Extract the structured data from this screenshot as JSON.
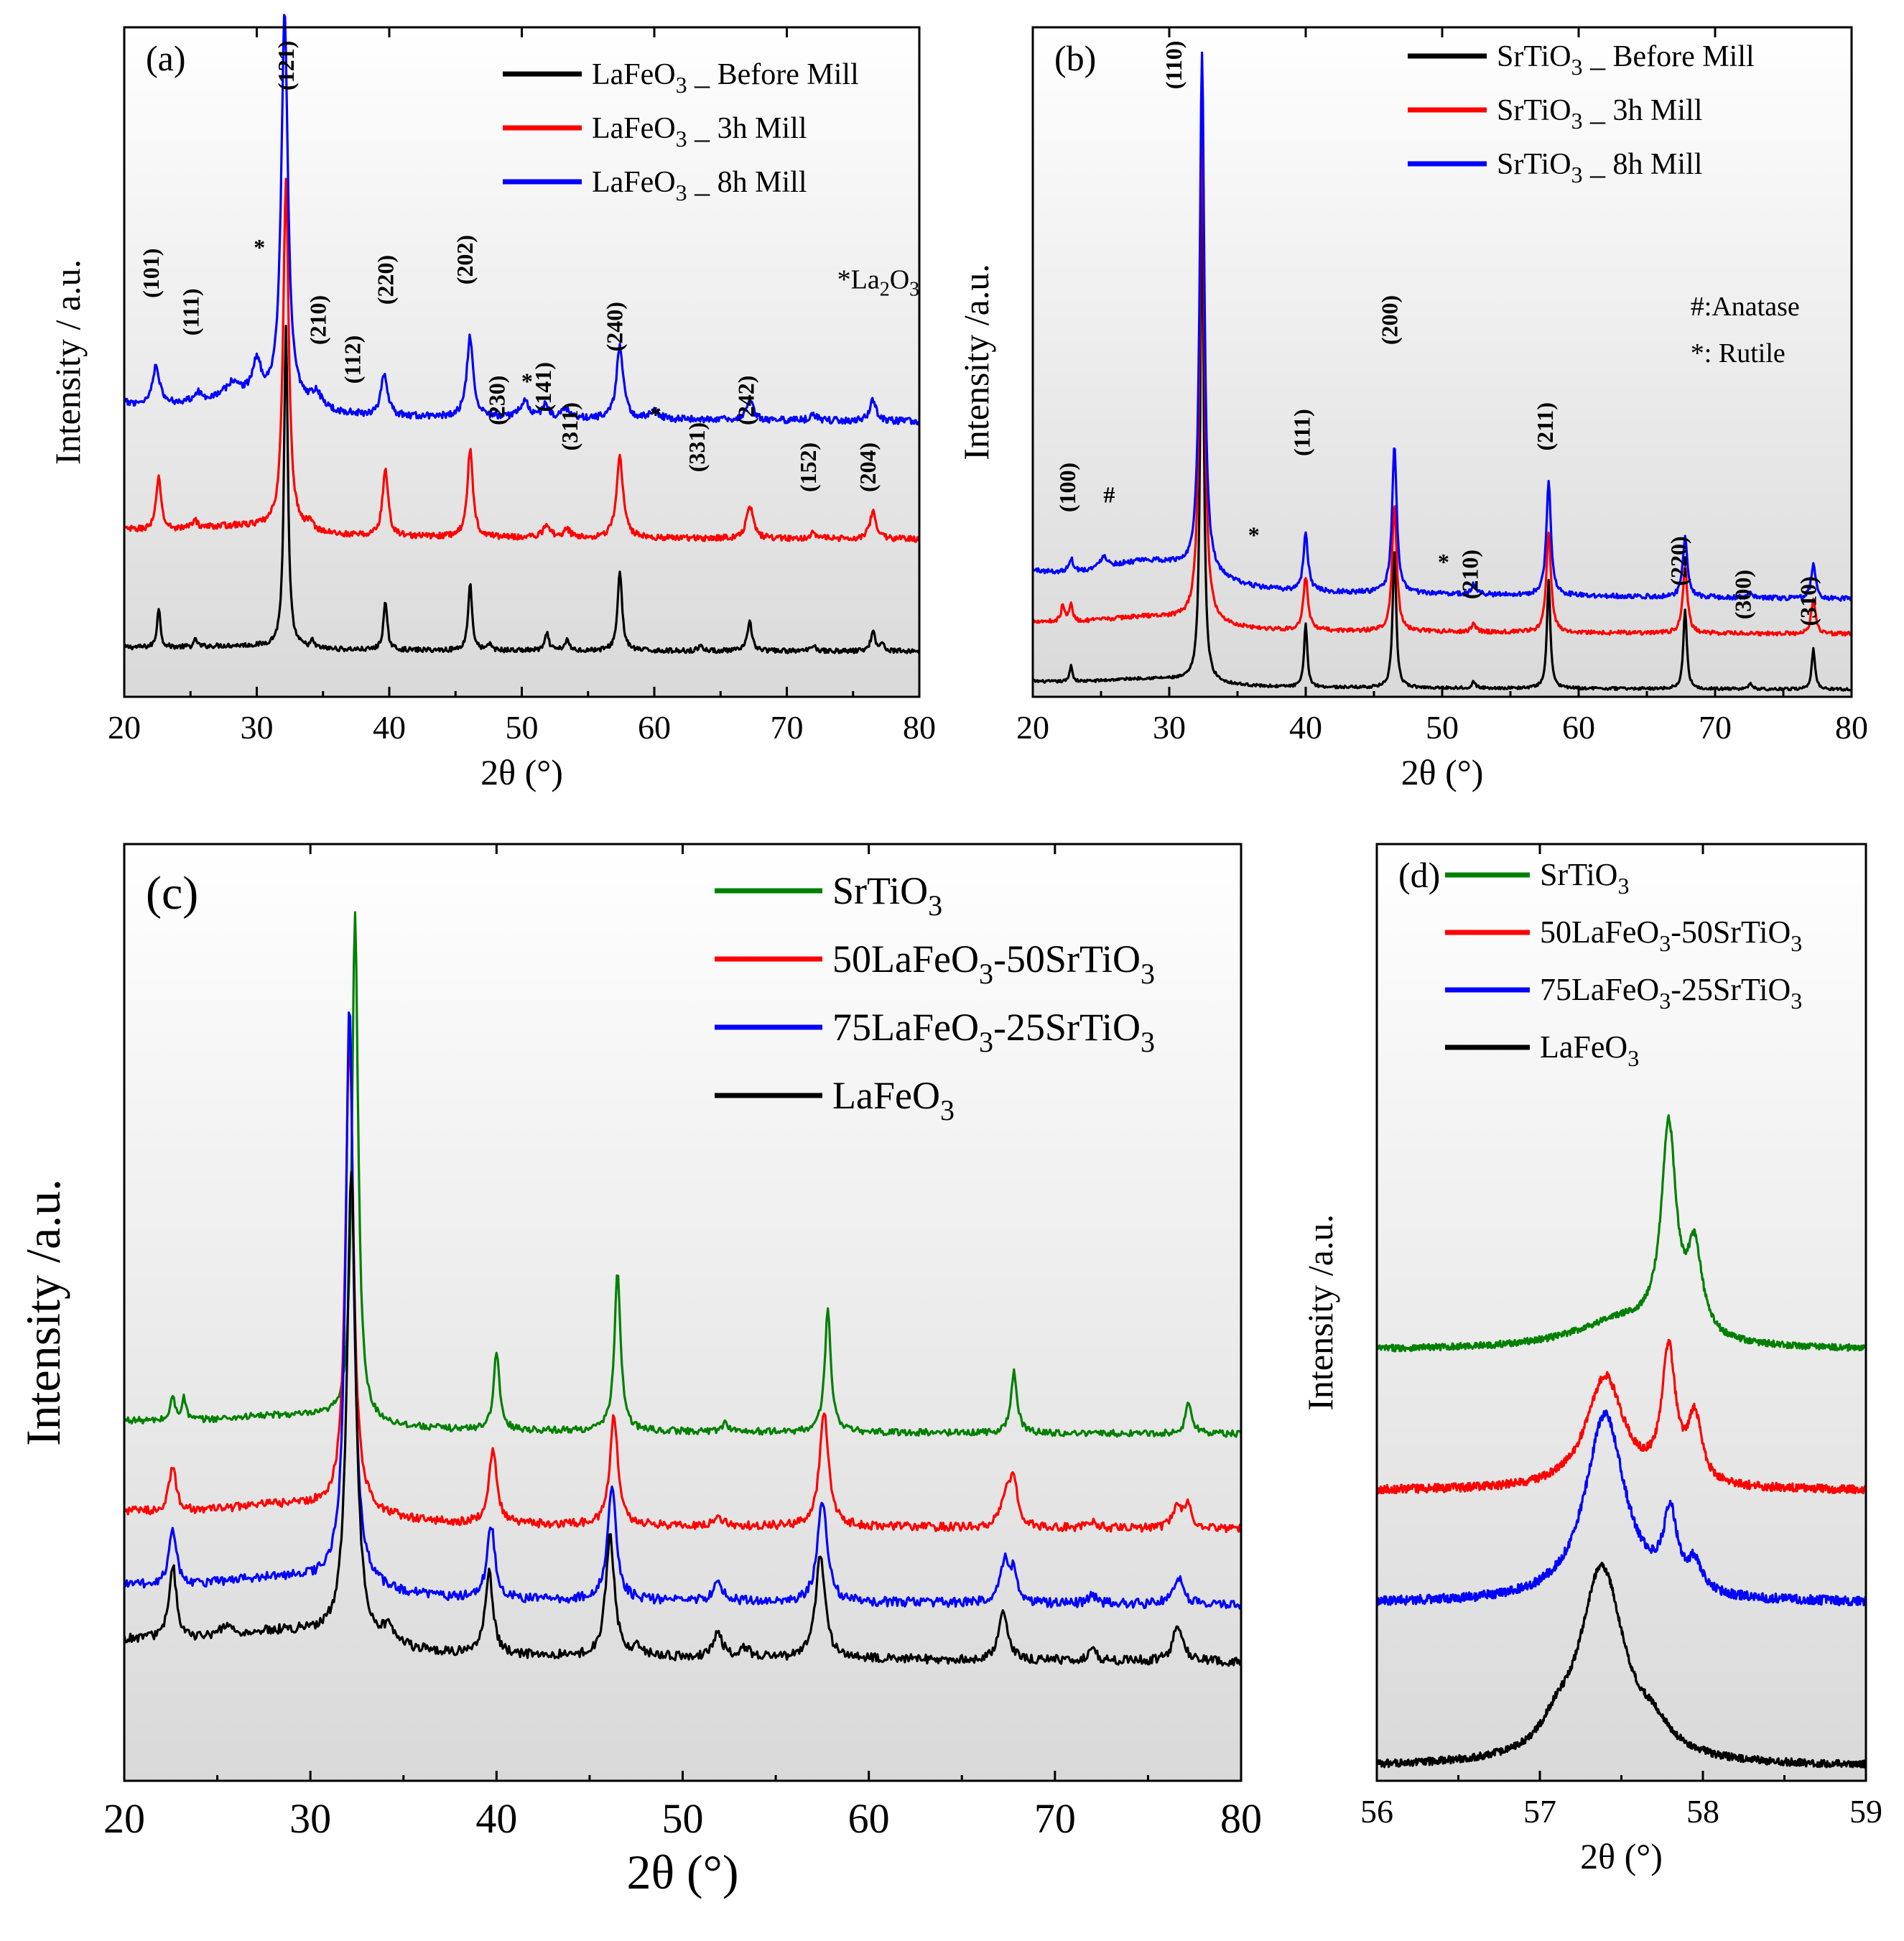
{
  "colors": {
    "black": "#000000",
    "red": "#ff0000",
    "blue": "#0000ff",
    "green": "#008000"
  },
  "chart_data": [
    {
      "id": "a",
      "type": "line",
      "panel_label": "(a)",
      "xlabel": "2θ (°)",
      "ylabel": "Intensity / a.u.",
      "xlim": [
        20,
        80
      ],
      "ylim": [
        0,
        100
      ],
      "xticks": [
        20,
        30,
        40,
        50,
        60,
        70,
        80
      ],
      "legend_position": "top-right",
      "series": [
        {
          "name": "LaFeO₃ _ Before Mill",
          "label_main": "LaFeO",
          "label_sub": "3",
          "label_tail": " _ Before Mill",
          "color": "black",
          "baseline": 7,
          "noise": 0.35,
          "hump": 0.5,
          "peaks": [
            [
              22.6,
              6,
              0.15
            ],
            [
              25.4,
              1.2,
              0.12
            ],
            [
              32.2,
              48,
              0.17
            ],
            [
              34.2,
              1,
              0.15
            ],
            [
              39.7,
              7,
              0.18
            ],
            [
              46.1,
              10,
              0.18
            ],
            [
              47.6,
              1,
              0.15
            ],
            [
              51.9,
              2.5,
              0.18
            ],
            [
              53.4,
              1.5,
              0.2
            ],
            [
              57.4,
              12,
              0.2
            ],
            [
              63.5,
              0.8,
              0.2
            ],
            [
              67.2,
              4.5,
              0.2
            ],
            [
              72,
              1,
              0.2
            ],
            [
              76.5,
              3,
              0.2
            ],
            [
              77.2,
              1,
              0.2
            ]
          ]
        },
        {
          "name": "LaFeO₃ _ 3h Mill",
          "label_main": "LaFeO",
          "label_sub": "3",
          "label_tail": " _ 3h Mill",
          "color": "red",
          "baseline": 24,
          "noise": 0.45,
          "hump": 1.2,
          "peaks": [
            [
              22.6,
              8,
              0.22
            ],
            [
              25.3,
              1.2,
              0.25
            ],
            [
              32.2,
              52,
              0.25
            ],
            [
              34,
              1.2,
              0.3
            ],
            [
              39.7,
              10,
              0.25
            ],
            [
              46.1,
              13,
              0.25
            ],
            [
              51.9,
              2,
              0.3
            ],
            [
              53.4,
              1.2,
              0.3
            ],
            [
              57.4,
              12,
              0.3
            ],
            [
              67.2,
              5,
              0.3
            ],
            [
              72,
              1,
              0.3
            ],
            [
              76.5,
              4,
              0.3
            ]
          ]
        },
        {
          "name": "LaFeO₃ _ 8h Mill",
          "label_main": "LaFeO",
          "label_sub": "3",
          "label_tail": " _ 8h Mill",
          "color": "blue",
          "baseline": 42,
          "noise": 0.5,
          "hump": 2.2,
          "peaks": [
            [
              22.4,
              6,
              0.3
            ],
            [
              25.5,
              1.2,
              0.3
            ],
            [
              28.2,
              2,
              0.6
            ],
            [
              30,
              5,
              0.4
            ],
            [
              32.1,
              58,
              0.3
            ],
            [
              34.5,
              2.2,
              0.5
            ],
            [
              39.6,
              6,
              0.3
            ],
            [
              46.1,
              12,
              0.3
            ],
            [
              50.2,
              2.5,
              0.4
            ],
            [
              51.8,
              2,
              0.3
            ],
            [
              53.3,
              1.5,
              0.3
            ],
            [
              57.4,
              11,
              0.3
            ],
            [
              60,
              1.2,
              0.4
            ],
            [
              67.2,
              3,
              0.3
            ],
            [
              72,
              0.8,
              0.3
            ],
            [
              76.5,
              3,
              0.3
            ]
          ]
        }
      ],
      "annotations": [
        {
          "text": "(101)",
          "x": 22.6,
          "y": 67
        },
        {
          "text": "(111)",
          "x": 25.6,
          "y": 61
        },
        {
          "text": "*",
          "x": 30.2,
          "y": 66
        },
        {
          "text": "(121)",
          "x": 32.8,
          "y": 98
        },
        {
          "text": "(210)",
          "x": 35.2,
          "y": 60
        },
        {
          "text": "(112)",
          "x": 37.8,
          "y": 54
        },
        {
          "text": "(220)",
          "x": 40.3,
          "y": 66
        },
        {
          "text": "(202)",
          "x": 46.3,
          "y": 69
        },
        {
          "text": "(230)",
          "x": 48.7,
          "y": 48
        },
        {
          "text": "*",
          "x": 50.4,
          "y": 46
        },
        {
          "text": "(141)",
          "x": 52.2,
          "y": 50
        },
        {
          "text": "(311)",
          "x": 54.2,
          "y": 44
        },
        {
          "text": "(240)",
          "x": 57.6,
          "y": 59
        },
        {
          "text": "*",
          "x": 60.1,
          "y": 41
        },
        {
          "text": "(331)",
          "x": 63.8,
          "y": 41
        },
        {
          "text": "(242)",
          "x": 67.5,
          "y": 48
        },
        {
          "text": "(152)",
          "x": 72.2,
          "y": 38
        },
        {
          "text": "(204)",
          "x": 76.7,
          "y": 38
        }
      ],
      "note": {
        "text": "*La₂O₃",
        "main": "*La",
        "sub1": "2",
        "mid": "O",
        "sub2": "3",
        "x": 73.8,
        "y": 61
      }
    },
    {
      "id": "b",
      "type": "line",
      "panel_label": "(b)",
      "xlabel": "2θ (°)",
      "ylabel": "Intensity /a.u.",
      "xlim": [
        20,
        80
      ],
      "ylim": [
        0,
        100
      ],
      "xticks": [
        20,
        30,
        40,
        50,
        60,
        70,
        80
      ],
      "legend_position": "top-right",
      "series": [
        {
          "name": "SrTiO₃ _ Before Mill",
          "label_main": "SrTiO",
          "label_sub": "3",
          "label_tail": " _ Before Mill",
          "color": "black",
          "baseline": 1.5,
          "noise": 0.2,
          "hump": 1,
          "peaks": [
            [
              22.8,
              2.5,
              0.12
            ],
            [
              32.4,
              77,
              0.14
            ],
            [
              40,
              9.5,
              0.14
            ],
            [
              46.5,
              21,
              0.15
            ],
            [
              52.3,
              1,
              0.15
            ],
            [
              57.8,
              16,
              0.15
            ],
            [
              67.8,
              12,
              0.15
            ],
            [
              72.6,
              0.8,
              0.15
            ],
            [
              77.2,
              6,
              0.15
            ]
          ]
        },
        {
          "name": "SrTiO₃ _ 3h Mill",
          "label_main": "SrTiO",
          "label_sub": "3",
          "label_tail": " _ 3h Mill",
          "color": "red",
          "baseline": 10,
          "noise": 0.3,
          "hump": 1.6,
          "peaks": [
            [
              22.2,
              2.5,
              0.15
            ],
            [
              22.8,
              2.5,
              0.15
            ],
            [
              32.4,
              76,
              0.2
            ],
            [
              40,
              8,
              0.2
            ],
            [
              46.5,
              19,
              0.2
            ],
            [
              52.3,
              1.2,
              0.2
            ],
            [
              57.8,
              15,
              0.2
            ],
            [
              67.8,
              10,
              0.2
            ],
            [
              77.2,
              5,
              0.2
            ]
          ]
        },
        {
          "name": "SrTiO₃ _ 8h Mill",
          "label_main": "SrTiO",
          "label_sub": "3",
          "label_tail": " _ 8h Mill",
          "color": "blue",
          "baseline": 16,
          "noise": 0.35,
          "hump": 3.5,
          "peaks": [
            [
              22.8,
              2,
              0.2
            ],
            [
              25.2,
              1.8,
              0.3
            ],
            [
              32.4,
              78,
              0.2
            ],
            [
              40,
              8.5,
              0.2
            ],
            [
              46.5,
              22,
              0.2
            ],
            [
              52.3,
              1.5,
              0.2
            ],
            [
              57.8,
              17,
              0.2
            ],
            [
              67.8,
              9,
              0.2
            ],
            [
              72.6,
              0.6,
              0.2
            ],
            [
              77.2,
              5,
              0.2
            ]
          ]
        }
      ],
      "annotations": [
        {
          "text": "(100)",
          "x": 23.1,
          "y": 35
        },
        {
          "text": "#",
          "x": 25.6,
          "y": 29
        },
        {
          "text": "(110)",
          "x": 30.9,
          "y": 98
        },
        {
          "text": "*",
          "x": 36.2,
          "y": 23
        },
        {
          "text": "(111)",
          "x": 40.3,
          "y": 43
        },
        {
          "text": "(200)",
          "x": 46.7,
          "y": 60
        },
        {
          "text": "*",
          "x": 50.1,
          "y": 19
        },
        {
          "text": "(210)",
          "x": 52.6,
          "y": 22
        },
        {
          "text": "(211)",
          "x": 58.1,
          "y": 44
        },
        {
          "text": "(220)",
          "x": 67.9,
          "y": 24
        },
        {
          "text": "(300)",
          "x": 72.6,
          "y": 19
        },
        {
          "text": "(310)",
          "x": 77.4,
          "y": 18
        }
      ],
      "notes": [
        {
          "text": "#:Anatase",
          "x": 68.2,
          "y": 57
        },
        {
          "text": "*: Rutile",
          "x": 68.2,
          "y": 50
        }
      ]
    },
    {
      "id": "c",
      "type": "line",
      "panel_label": "(c)",
      "xlabel": "2θ (°)",
      "ylabel": "Intensity /a.u.",
      "xlim": [
        20,
        80
      ],
      "ylim": [
        0,
        100
      ],
      "xticks": [
        20,
        30,
        40,
        50,
        60,
        70,
        80
      ],
      "legend_position": "top-right",
      "series": [
        {
          "name": "SrTiO₃",
          "label_main": "SrTiO",
          "label_sub": "3",
          "label_tail": "",
          "color": "green",
          "baseline": 37.5,
          "noise": 0.35,
          "hump": 1.2,
          "peaks": [
            [
              22.6,
              2.5,
              0.15
            ],
            [
              23.2,
              2.3,
              0.15
            ],
            [
              32.4,
              54,
              0.2
            ],
            [
              40,
              8,
              0.2
            ],
            [
              46.5,
              17,
              0.2
            ],
            [
              52.3,
              1,
              0.2
            ],
            [
              57.8,
              13,
              0.2
            ],
            [
              67.8,
              6.5,
              0.2
            ],
            [
              77.2,
              3.5,
              0.2
            ]
          ]
        },
        {
          "name": "50LaFeO₃-50SrTiO₃",
          "label_main": "50LaFeO",
          "label_sub": "3",
          "label_tail": "-50SrTiO",
          "label_sub2": "3",
          "color": "red",
          "baseline": 27.5,
          "noise": 0.45,
          "hump": 1.6,
          "peaks": [
            [
              22.6,
              5,
              0.22
            ],
            [
              32.1,
              51,
              0.25
            ],
            [
              39.8,
              8,
              0.25
            ],
            [
              46.3,
              12,
              0.25
            ],
            [
              51.9,
              1,
              0.3
            ],
            [
              57.6,
              12,
              0.3
            ],
            [
              67.4,
              4,
              0.3
            ],
            [
              67.8,
              4.5,
              0.2
            ],
            [
              72,
              0.8,
              0.3
            ],
            [
              76.6,
              2.5,
              0.3
            ],
            [
              77.2,
              2.5,
              0.2
            ]
          ]
        },
        {
          "name": "75LaFeO₃-25SrTiO₃",
          "label_main": "75LaFeO",
          "label_sub": "3",
          "label_tail": "-25SrTiO",
          "label_sub2": "3",
          "color": "blue",
          "baseline": 19.5,
          "noise": 0.5,
          "hump": 1.8,
          "peaks": [
            [
              22.6,
              6,
              0.25
            ],
            [
              32.1,
              62,
              0.25
            ],
            [
              39.7,
              8,
              0.25
            ],
            [
              46.2,
              12,
              0.28
            ],
            [
              51.9,
              2,
              0.3
            ],
            [
              57.5,
              11,
              0.3
            ],
            [
              67.3,
              4.5,
              0.3
            ],
            [
              67.8,
              3,
              0.2
            ],
            [
              72,
              0.8,
              0.3
            ],
            [
              76.6,
              3,
              0.3
            ]
          ]
        },
        {
          "name": "LaFeO₃",
          "label_main": "LaFeO",
          "label_sub": "3",
          "label_tail": "",
          "color": "black",
          "baseline": 13.5,
          "noise": 0.5,
          "hump": 2,
          "peaks": [
            [
              22.6,
              8,
              0.25
            ],
            [
              25.4,
              1,
              0.3
            ],
            [
              32.2,
              50,
              0.28
            ],
            [
              34.2,
              1.5,
              0.4
            ],
            [
              39.6,
              9,
              0.25
            ],
            [
              46.1,
              13,
              0.28
            ],
            [
              47.6,
              1,
              0.3
            ],
            [
              51.9,
              2.5,
              0.3
            ],
            [
              53.4,
              1,
              0.3
            ],
            [
              57.4,
              11,
              0.3
            ],
            [
              67.2,
              5,
              0.3
            ],
            [
              72,
              1,
              0.3
            ],
            [
              76.6,
              4,
              0.3
            ]
          ]
        }
      ]
    },
    {
      "id": "d",
      "type": "line",
      "panel_label": "(d)",
      "xlabel": "2θ (°)",
      "ylabel": "Intensity /a.u.",
      "xlim": [
        56,
        59
      ],
      "ylim": [
        0,
        100
      ],
      "xticks": [
        56,
        57,
        58,
        59
      ],
      "legend_position": "top-left",
      "series": [
        {
          "name": "SrTiO₃",
          "label_main": "SrTiO",
          "label_sub": "3",
          "label_tail": "",
          "color": "green",
          "baseline": 46,
          "noise": 0.35,
          "hump": 0,
          "peaks": [
            [
              57.5,
              3,
              0.35
            ],
            [
              57.79,
              22,
              0.055
            ],
            [
              57.95,
              9,
              0.055
            ]
          ]
        },
        {
          "name": "50LaFeO₃-50SrTiO₃",
          "label_main": "50LaFeO",
          "label_sub": "3",
          "label_tail": "-50SrTiO",
          "label_sub2": "3",
          "color": "red",
          "baseline": 31,
          "noise": 0.45,
          "hump": 0,
          "peaks": [
            [
              57.4,
              12,
              0.14
            ],
            [
              57.79,
              14,
              0.05
            ],
            [
              57.95,
              7,
              0.05
            ]
          ]
        },
        {
          "name": "75LaFeO₃-25SrTiO₃",
          "label_main": "75LaFeO",
          "label_sub": "3",
          "label_tail": "-25SrTiO",
          "label_sub2": "3",
          "color": "blue",
          "baseline": 19,
          "noise": 0.5,
          "hump": 0,
          "peaks": [
            [
              57.4,
              20,
              0.15
            ],
            [
              57.8,
              8,
              0.05
            ],
            [
              57.95,
              3,
              0.05
            ]
          ]
        },
        {
          "name": "LaFeO₃",
          "label_main": "LaFeO",
          "label_sub": "3",
          "label_tail": "",
          "color": "black",
          "baseline": 1.5,
          "noise": 0.4,
          "hump": 0,
          "peaks": [
            [
              57.38,
              21,
              0.17
            ],
            [
              57.1,
              2,
              0.1
            ],
            [
              57.7,
              2,
              0.12
            ]
          ]
        }
      ]
    }
  ]
}
